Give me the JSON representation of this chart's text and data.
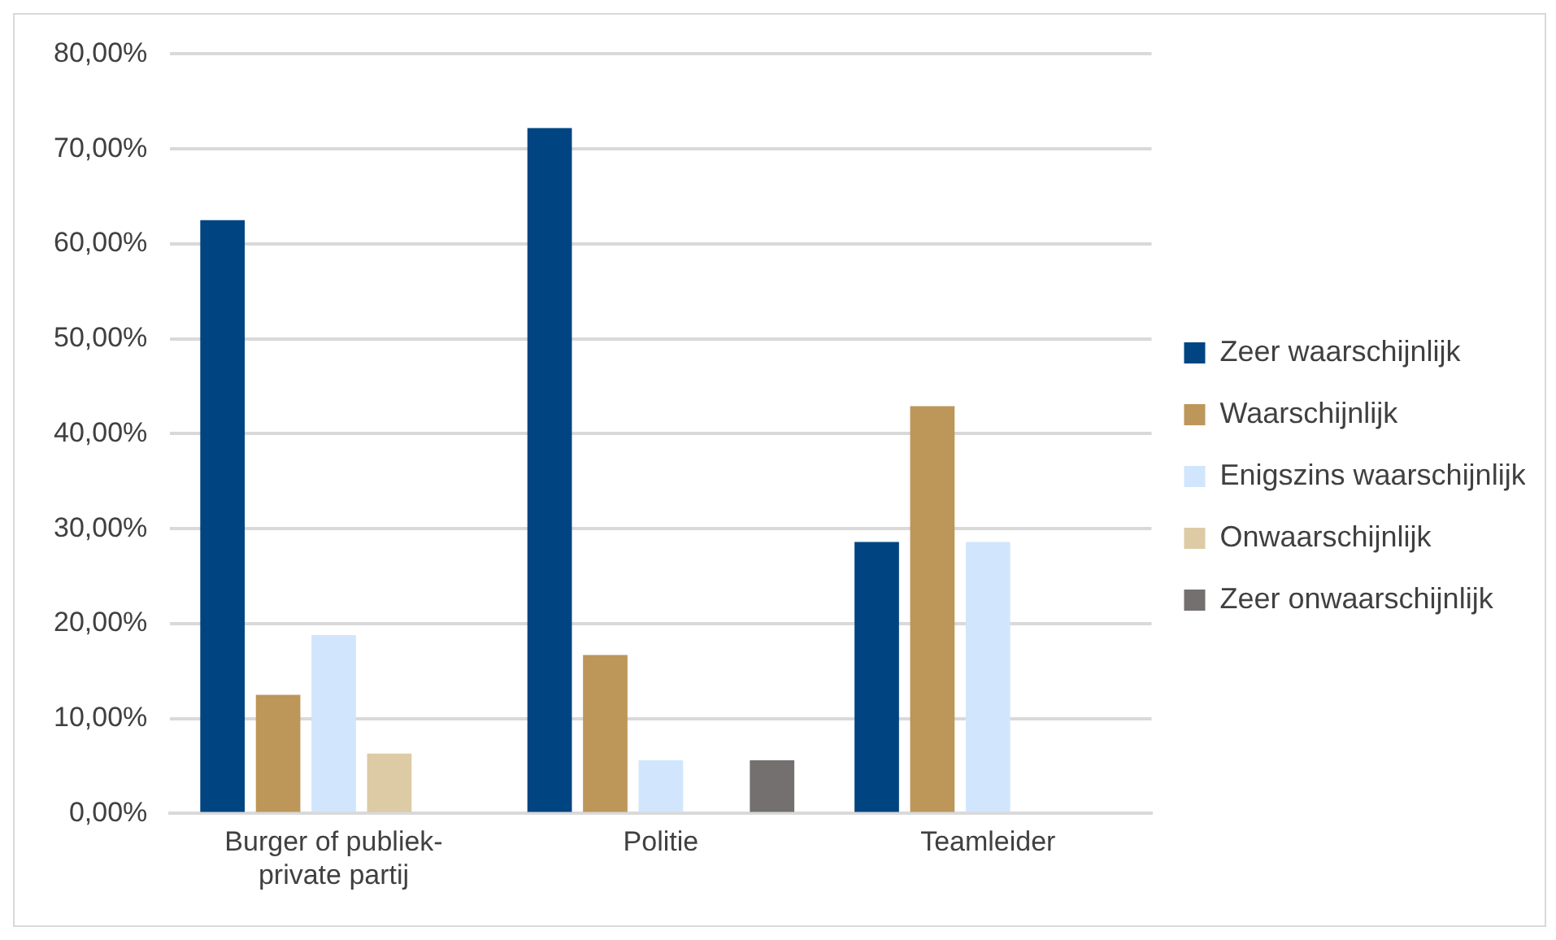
{
  "chart_data": {
    "type": "bar",
    "categories": [
      "Burger of publiek-private partij",
      "Politie",
      "Teamleider"
    ],
    "series": [
      {
        "name": "Zeer waarschijnlijk",
        "color": "#004481",
        "values": [
          62.5,
          72.2,
          28.6
        ]
      },
      {
        "name": "Waarschijnlijk",
        "color": "#bd965a",
        "values": [
          12.5,
          16.7,
          42.9
        ]
      },
      {
        "name": "Enigszins waarschijnlijk",
        "color": "#d1e6fc",
        "values": [
          18.8,
          5.6,
          28.6
        ]
      },
      {
        "name": "Onwaarschijnlijk",
        "color": "#dccba5",
        "values": [
          6.3,
          0,
          0
        ]
      },
      {
        "name": "Zeer onwaarschijnlijk",
        "color": "#73706f",
        "values": [
          0,
          5.6,
          0
        ]
      }
    ],
    "ylim": [
      0,
      80
    ],
    "yticks": [
      {
        "value": 0,
        "label": "0,00%"
      },
      {
        "value": 10,
        "label": "10,00%"
      },
      {
        "value": 20,
        "label": "20,00%"
      },
      {
        "value": 30,
        "label": "30,00%"
      },
      {
        "value": 40,
        "label": "40,00%"
      },
      {
        "value": 50,
        "label": "50,00%"
      },
      {
        "value": 60,
        "label": "60,00%"
      },
      {
        "value": 70,
        "label": "70,00%"
      },
      {
        "value": 80,
        "label": "80,00%"
      }
    ],
    "grid": "y",
    "legend": "right"
  }
}
